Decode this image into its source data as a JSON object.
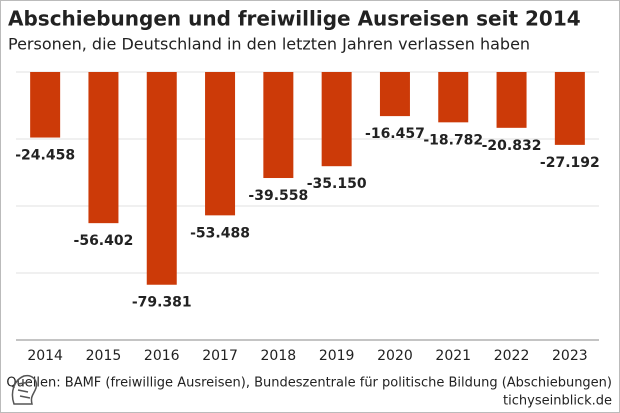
{
  "chart_data": {
    "type": "bar",
    "title": "Abschiebungen und freiwillige Ausreisen seit 2014",
    "subtitle": "Personen, die Deutschland in den letzten Jahren verlassen haben",
    "categories": [
      "2014",
      "2015",
      "2016",
      "2017",
      "2018",
      "2019",
      "2020",
      "2021",
      "2022",
      "2023"
    ],
    "values": [
      -24458,
      -56402,
      -79381,
      -53488,
      -39558,
      -35150,
      -16457,
      -18782,
      -20832,
      -27192
    ],
    "value_labels": [
      "-24.458",
      "-56.402",
      "-79.381",
      "-53.488",
      "-39.558",
      "-35.150",
      "-16.457",
      "-18.782",
      "-20.832",
      "-27.192"
    ],
    "color": "#cc3a08",
    "ylim": [
      -100000,
      0
    ],
    "yticks": [
      -100000,
      -75000,
      -50000,
      -25000,
      0
    ],
    "grid": true,
    "source": "Quellen: BAMF (freiwillige Ausreisen), Bundeszentrale für politische Bildung (Abschiebungen)",
    "publisher": "tichyseinblick.de"
  }
}
